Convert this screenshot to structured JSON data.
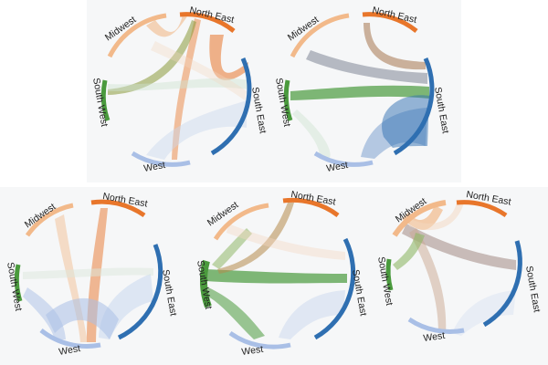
{
  "colors": {
    "north_east": "#e8762b",
    "south_east": "#2f6fb1",
    "west": "#a9bfe6",
    "south_west": "#4a9a3d",
    "midwest": "#f2b98a",
    "background": "#f6f7f8"
  },
  "region_labels": {
    "north_east": "North East",
    "south_east": "South East",
    "west": "West",
    "south_west": "South West",
    "midwest": "Midwest"
  },
  "diagrams": [
    {
      "id": "1",
      "highlight": [
        "north_east"
      ]
    },
    {
      "id": "2",
      "highlight": [
        "south_east",
        "south_west"
      ]
    },
    {
      "id": "3",
      "highlight": [
        "west",
        "north_east"
      ]
    },
    {
      "id": "4",
      "highlight": [
        "south_west",
        "south_east"
      ]
    },
    {
      "id": "5",
      "highlight": [
        "midwest",
        "south_east"
      ]
    }
  ]
}
